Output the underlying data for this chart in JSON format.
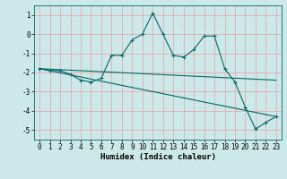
{
  "xlabel": "Humidex (Indice chaleur)",
  "ylabel": "",
  "xlim": [
    -0.5,
    23.5
  ],
  "ylim": [
    -5.5,
    1.5
  ],
  "yticks": [
    1,
    0,
    -1,
    -2,
    -3,
    -4,
    -5
  ],
  "xticks": [
    0,
    1,
    2,
    3,
    4,
    5,
    6,
    7,
    8,
    9,
    10,
    11,
    12,
    13,
    14,
    15,
    16,
    17,
    18,
    19,
    20,
    21,
    22,
    23
  ],
  "bg_color": "#cde8e8",
  "grid_color": "#e8a0a0",
  "line_color": "#006868",
  "line1_x": [
    0,
    1,
    2,
    3,
    4,
    5,
    6,
    7,
    8,
    9,
    10,
    11,
    12,
    13,
    14,
    15,
    16,
    17,
    18,
    19,
    20,
    21,
    22,
    23
  ],
  "line1_y": [
    -1.8,
    -1.9,
    -1.9,
    -2.1,
    -2.4,
    -2.5,
    -2.3,
    -1.1,
    -1.1,
    -0.3,
    0.0,
    1.1,
    0.0,
    -1.1,
    -1.2,
    -0.8,
    -0.1,
    -0.1,
    -1.8,
    -2.5,
    -3.8,
    -4.95,
    -4.6,
    -4.3
  ],
  "line2_x": [
    0,
    23
  ],
  "line2_y": [
    -1.8,
    -4.3
  ],
  "line3_x": [
    0,
    23
  ],
  "line3_y": [
    -1.8,
    -2.4
  ],
  "tick_fontsize": 5.5,
  "xlabel_fontsize": 6.5
}
